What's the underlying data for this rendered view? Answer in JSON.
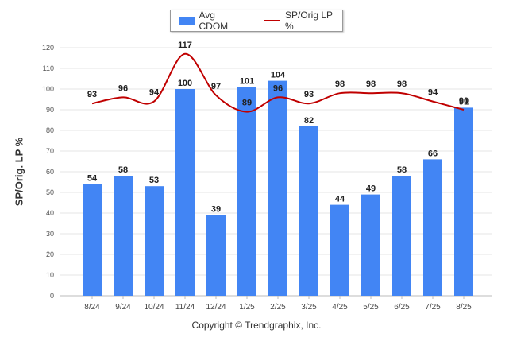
{
  "chart_data": {
    "type": "bar",
    "categories": [
      "8/24",
      "9/24",
      "10/24",
      "11/24",
      "12/24",
      "1/25",
      "2/25",
      "3/25",
      "4/25",
      "5/25",
      "6/25",
      "7/25",
      "8/25"
    ],
    "series": [
      {
        "name": "Avg CDOM",
        "type": "bar",
        "color": "#4285f4",
        "values": [
          54,
          58,
          53,
          100,
          39,
          101,
          104,
          82,
          44,
          49,
          58,
          66,
          91
        ]
      },
      {
        "name": "SP/Orig LP %",
        "type": "line",
        "color": "#c00000",
        "values": [
          93,
          96,
          94,
          117,
          97,
          89,
          96,
          93,
          98,
          98,
          98,
          94,
          90
        ]
      }
    ],
    "ylabel": "SP/Orig. LP %",
    "ylim": [
      0,
      120
    ],
    "yticks": [
      0,
      10,
      20,
      30,
      40,
      50,
      60,
      70,
      80,
      90,
      100,
      110,
      120
    ],
    "grid": true,
    "legend": "top-center"
  },
  "legend": {
    "bar_label": "Avg CDOM",
    "line_label": "SP/Orig LP %"
  },
  "footer": {
    "copyright": "Copyright © Trendgraphix, Inc."
  }
}
